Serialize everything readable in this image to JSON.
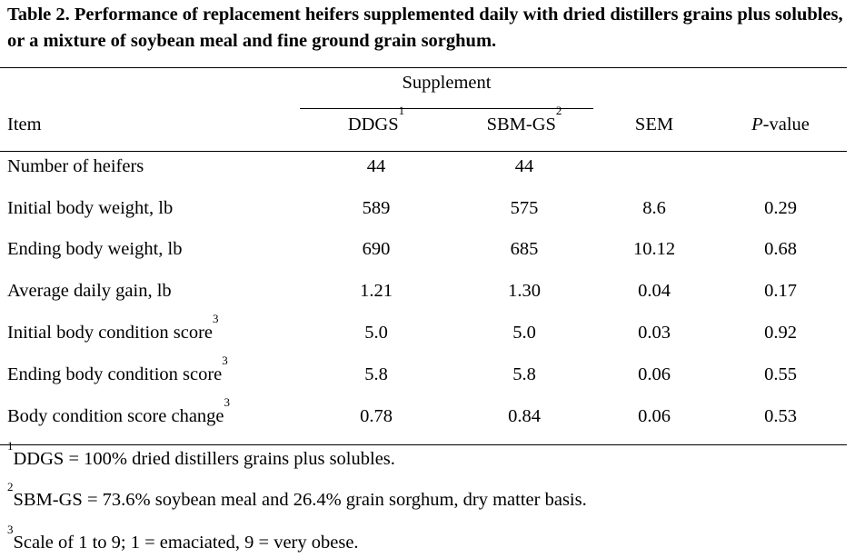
{
  "title": "Table 2. Performance of replacement heifers supplemented daily with dried distillers grains plus solubles, or a mixture of soybean meal and fine ground grain sorghum.",
  "header": {
    "group_label": "Supplement",
    "item": "Item",
    "ddgs": "DDGS",
    "ddgs_note": "1",
    "sbmgs": "SBM-GS",
    "sbmgs_note": "2",
    "sem": "SEM",
    "p_italic": "P",
    "p_rest": "-value"
  },
  "rows": [
    {
      "item": "Number of heifers",
      "note": "",
      "ddgs": "44",
      "sbmgs": "44",
      "sem": "",
      "p": ""
    },
    {
      "item": "Initial body weight, lb",
      "note": "",
      "ddgs": "589",
      "sbmgs": "575",
      "sem": "8.6",
      "p": "0.29"
    },
    {
      "item": "Ending body weight, lb",
      "note": "",
      "ddgs": "690",
      "sbmgs": "685",
      "sem": "10.12",
      "p": "0.68"
    },
    {
      "item": "Average daily gain, lb",
      "note": "",
      "ddgs": "1.21",
      "sbmgs": "1.30",
      "sem": "0.04",
      "p": "0.17"
    },
    {
      "item": "Initial body condition score",
      "note": "3",
      "ddgs": "5.0",
      "sbmgs": "5.0",
      "sem": "0.03",
      "p": "0.92"
    },
    {
      "item": "Ending body condition score",
      "note": "3",
      "ddgs": "5.8",
      "sbmgs": "5.8",
      "sem": "0.06",
      "p": "0.55"
    },
    {
      "item": "Body condition score change",
      "note": "3",
      "ddgs": "0.78",
      "sbmgs": "0.84",
      "sem": "0.06",
      "p": "0.53"
    }
  ],
  "footnotes": [
    {
      "mark": "1",
      "text": "DDGS = 100% dried distillers grains plus solubles."
    },
    {
      "mark": "2",
      "text": "SBM-GS = 73.6% soybean meal and 26.4% grain sorghum, dry matter basis."
    },
    {
      "mark": "3",
      "text": "Scale of 1 to 9; 1 = emaciated, 9 = very obese."
    }
  ]
}
